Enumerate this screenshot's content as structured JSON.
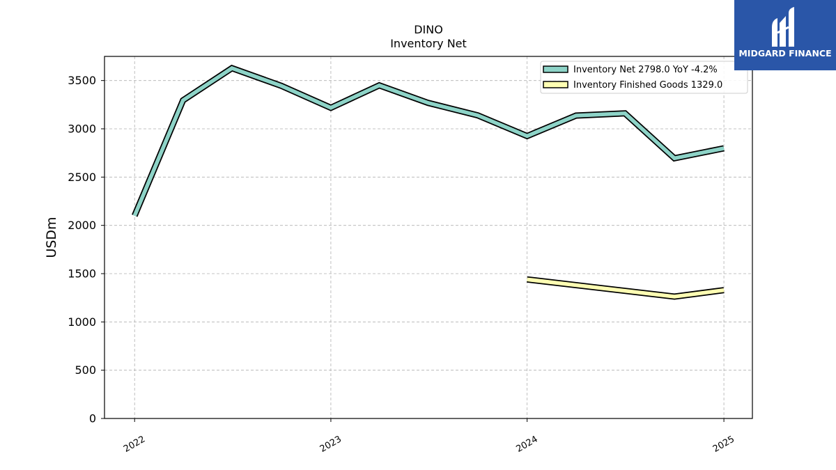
{
  "logo": {
    "text": "MIDGARD FINANCE",
    "color": "#2a56a8"
  },
  "chart_data": {
    "type": "line",
    "title": "DINO",
    "subtitle": "Inventory Net",
    "xlabel": "",
    "ylabel": "USDm",
    "xlim": [
      "2021-11-06",
      "2025-02-23"
    ],
    "ylim": [
      0,
      3750
    ],
    "yticks": [
      0,
      500,
      1000,
      1500,
      2000,
      2500,
      3000,
      3500
    ],
    "xticks": [
      {
        "date": "2022-01-01",
        "label": "2022"
      },
      {
        "date": "2023-01-01",
        "label": "2023"
      },
      {
        "date": "2024-01-01",
        "label": "2024"
      },
      {
        "date": "2025-01-01",
        "label": "2025"
      }
    ],
    "grid": true,
    "legend_position": "top-right",
    "series": [
      {
        "name": "Inventory Net",
        "legend_label": "Inventory Net  2798.0 YoY -4.2%",
        "color": "#8dd3c7",
        "x": [
          "2022-01-01",
          "2022-04-01",
          "2022-07-01",
          "2022-10-01",
          "2023-01-01",
          "2023-04-01",
          "2023-07-01",
          "2023-10-01",
          "2024-01-01",
          "2024-04-01",
          "2024-07-01",
          "2024-10-01",
          "2025-01-01"
        ],
        "y": [
          2100,
          3295,
          3628,
          3445,
          3218,
          3450,
          3268,
          3140,
          2925,
          3137,
          3160,
          2695,
          2798
        ]
      },
      {
        "name": "Inventory Finished Goods",
        "legend_label": "Inventory Finished Goods  1329.0",
        "color": "#ffffb3",
        "x": [
          "2024-01-01",
          "2024-10-01",
          "2025-01-01"
        ],
        "y": [
          1440,
          1262,
          1329
        ]
      }
    ]
  }
}
